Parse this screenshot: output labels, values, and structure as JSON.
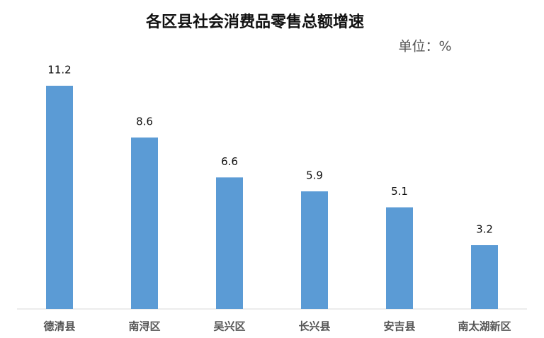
{
  "chart_data": {
    "type": "bar",
    "title": "各区县社会消费品零售总额增速",
    "subtitle": "单位：%",
    "categories": [
      "德清县",
      "南浔区",
      "吴兴区",
      "长兴县",
      "安吉县",
      "南太湖新区"
    ],
    "values": [
      11.2,
      8.6,
      6.6,
      5.9,
      5.1,
      3.2
    ],
    "color": "#5b9bd5",
    "grid": false
  }
}
